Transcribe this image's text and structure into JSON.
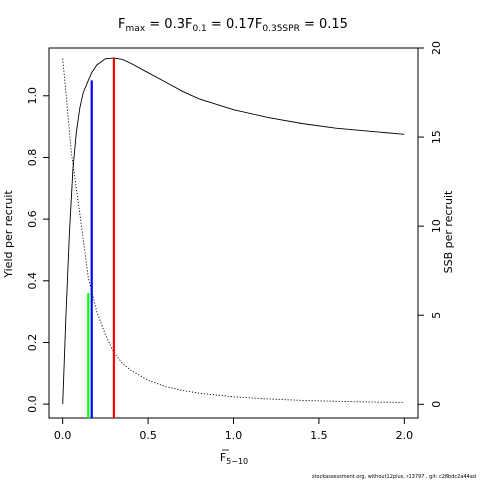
{
  "chart_data": {
    "type": "line",
    "title_parts": {
      "fmax_base": "F",
      "fmax_sub": "max",
      "fmax_value": " = 0.3",
      "f01_base": "F",
      "f01_sub": "0.1",
      "f01_value": " = 0.17",
      "fspr_base": "F",
      "fspr_sub": "0.35SPR",
      "fspr_value": " = 0.15"
    },
    "xlabel": {
      "base": "F",
      "sub": "5−10"
    },
    "ylabel_left": "Yield per recruit",
    "ylabel_right": "SSB per recruit",
    "footer": "stockassessment.org, without12plus, r13797 , git: c28bdc2a44ad",
    "xlim": [
      -0.08,
      2.08
    ],
    "ylim_left": [
      -0.045,
      1.155
    ],
    "ylim_right": [
      -0.77,
      20
    ],
    "x_ticks": [
      0,
      0.5,
      1,
      1.5,
      2
    ],
    "x_tick_labels": [
      "0.0",
      "0.5",
      "1.0",
      "1.5",
      "2.0"
    ],
    "y_left_ticks": [
      0,
      0.2,
      0.4,
      0.6,
      0.8,
      1
    ],
    "y_left_tick_labels": [
      "0.0",
      "0.2",
      "0.4",
      "0.6",
      "0.8",
      "1.0"
    ],
    "y_right_ticks": [
      0,
      5,
      10,
      15,
      20
    ],
    "y_right_tick_labels": [
      "0",
      "5",
      "10",
      "15",
      "20"
    ],
    "series": [
      {
        "style": "solid",
        "axis": "left",
        "color": "#000000",
        "x": [
          0,
          0.02,
          0.04,
          0.06,
          0.08,
          0.1,
          0.12,
          0.15,
          0.17,
          0.2,
          0.25,
          0.3,
          0.35,
          0.4,
          0.5,
          0.6,
          0.7,
          0.8,
          1.0,
          1.2,
          1.4,
          1.6,
          1.8,
          2.0
        ],
        "y": [
          0,
          0.3,
          0.56,
          0.76,
          0.88,
          0.96,
          1.01,
          1.05,
          1.075,
          1.1,
          1.12,
          1.123,
          1.118,
          1.105,
          1.075,
          1.045,
          1.015,
          0.99,
          0.955,
          0.93,
          0.91,
          0.895,
          0.885,
          0.875
        ]
      },
      {
        "style": "dotted",
        "axis": "right",
        "color": "#000000",
        "x": [
          0,
          0.02,
          0.05,
          0.1,
          0.15,
          0.2,
          0.25,
          0.3,
          0.35,
          0.4,
          0.5,
          0.6,
          0.7,
          0.8,
          1.0,
          1.2,
          1.4,
          1.6,
          1.8,
          2.0
        ],
        "y": [
          19.4,
          17.4,
          14.2,
          10.7,
          7.1,
          5.2,
          3.9,
          2.9,
          2.3,
          1.9,
          1.35,
          1.0,
          0.78,
          0.62,
          0.42,
          0.3,
          0.22,
          0.17,
          0.13,
          0.1
        ]
      }
    ],
    "reference_lines": [
      {
        "x": 0.15,
        "y_top": 0.36,
        "color": "#00ff00"
      },
      {
        "x": 0.17,
        "y_top": 1.05,
        "color": "#0000ff"
      },
      {
        "x": 0.3,
        "y_top": 1.123,
        "color": "#ff0000"
      }
    ],
    "grid": false,
    "legend": "none"
  }
}
